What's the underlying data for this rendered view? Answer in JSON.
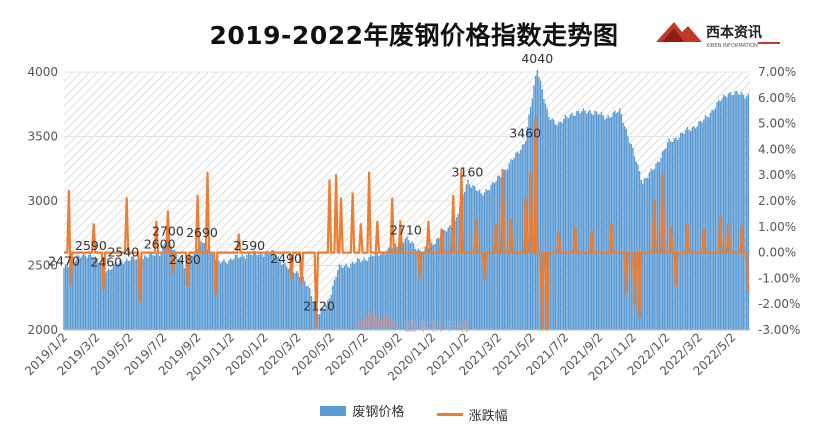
{
  "chart_data": {
    "type": "bar",
    "title": "2019-2022年废钢价格指数走势图",
    "series": [
      {
        "name": "废钢价格",
        "type": "bar",
        "color": "#5b9bd5"
      },
      {
        "name": "涨跌幅",
        "type": "line",
        "color": "#ed7d31"
      }
    ],
    "y_left": {
      "min": 2000,
      "max": 4000,
      "ticks": [
        "2000",
        "2500",
        "3000",
        "3500",
        "4000"
      ]
    },
    "y_right": {
      "min": -0.03,
      "max": 0.07,
      "ticks": [
        "-3.00%",
        "-2.00%",
        "-1.00%",
        "0.00%",
        "1.00%",
        "2.00%",
        "3.00%",
        "4.00%",
        "5.00%",
        "6.00%",
        "7.00%"
      ]
    },
    "x_ticks": [
      "2019/1/2",
      "2019/3/2",
      "2019/5/2",
      "2019/7/2",
      "2019/9/2",
      "2019/11/2",
      "2020/1/2",
      "2020/3/2",
      "2020/5/2",
      "2020/7/2",
      "2020/9/2",
      "2020/11/2",
      "2021/1/2",
      "2021/3/2",
      "2021/5/2",
      "2021/7/2",
      "2021/9/2",
      "2021/11/2",
      "2022/1/2",
      "2022/3/2",
      "2022/5/2"
    ],
    "price_anchors": [
      {
        "date": "2019/1/2",
        "value": 2470
      },
      {
        "date": "2019/1/25",
        "value": 2560
      },
      {
        "date": "2019/2/20",
        "value": 2590
      },
      {
        "date": "2019/3/20",
        "value": 2460
      },
      {
        "date": "2019/4/20",
        "value": 2540
      },
      {
        "date": "2019/5/25",
        "value": 2560
      },
      {
        "date": "2019/6/25",
        "value": 2600
      },
      {
        "date": "2019/7/10",
        "value": 2700
      },
      {
        "date": "2019/8/10",
        "value": 2480
      },
      {
        "date": "2019/9/10",
        "value": 2690
      },
      {
        "date": "2019/10/10",
        "value": 2520
      },
      {
        "date": "2019/11/10",
        "value": 2560
      },
      {
        "date": "2019/12/5",
        "value": 2590
      },
      {
        "date": "2020/1/20",
        "value": 2600
      },
      {
        "date": "2020/2/10",
        "value": 2490
      },
      {
        "date": "2020/3/5",
        "value": 2440
      },
      {
        "date": "2020/3/25",
        "value": 2300
      },
      {
        "date": "2020/4/10",
        "value": 2120
      },
      {
        "date": "2020/4/25",
        "value": 2200
      },
      {
        "date": "2020/5/15",
        "value": 2480
      },
      {
        "date": "2020/7/1",
        "value": 2550
      },
      {
        "date": "2020/8/15",
        "value": 2620
      },
      {
        "date": "2020/9/15",
        "value": 2710
      },
      {
        "date": "2020/10/15",
        "value": 2600
      },
      {
        "date": "2020/11/15",
        "value": 2720
      },
      {
        "date": "2020/12/15",
        "value": 2850
      },
      {
        "date": "2021/1/5",
        "value": 3160
      },
      {
        "date": "2021/1/30",
        "value": 3050
      },
      {
        "date": "2021/2/25",
        "value": 3150
      },
      {
        "date": "2021/3/25",
        "value": 3300
      },
      {
        "date": "2021/4/20",
        "value": 3460
      },
      {
        "date": "2021/5/12",
        "value": 4040
      },
      {
        "date": "2021/6/1",
        "value": 3650
      },
      {
        "date": "2021/6/20",
        "value": 3600
      },
      {
        "date": "2021/7/15",
        "value": 3680
      },
      {
        "date": "2021/8/15",
        "value": 3700
      },
      {
        "date": "2021/9/15",
        "value": 3650
      },
      {
        "date": "2021/10/10",
        "value": 3700
      },
      {
        "date": "2021/11/1",
        "value": 3400
      },
      {
        "date": "2021/11/20",
        "value": 3150
      },
      {
        "date": "2021/12/10",
        "value": 3250
      },
      {
        "date": "2022/1/5",
        "value": 3450
      },
      {
        "date": "2022/2/10",
        "value": 3550
      },
      {
        "date": "2022/3/10",
        "value": 3620
      },
      {
        "date": "2022/4/10",
        "value": 3780
      },
      {
        "date": "2022/4/25",
        "value": 3840
      },
      {
        "date": "2022/5/31",
        "value": 3820
      }
    ],
    "data_labels": [
      {
        "date": "2019/1/2",
        "value": 2470,
        "text": "2470"
      },
      {
        "date": "2019/2/20",
        "value": 2590,
        "text": "2590"
      },
      {
        "date": "2019/3/20",
        "value": 2460,
        "text": "2460"
      },
      {
        "date": "2019/4/20",
        "value": 2540,
        "text": "2540"
      },
      {
        "date": "2019/6/25",
        "value": 2600,
        "text": "2600"
      },
      {
        "date": "2019/7/10",
        "value": 2700,
        "text": "2700"
      },
      {
        "date": "2019/8/10",
        "value": 2480,
        "text": "2480"
      },
      {
        "date": "2019/9/10",
        "value": 2690,
        "text": "2690"
      },
      {
        "date": "2019/12/5",
        "value": 2590,
        "text": "2590"
      },
      {
        "date": "2020/2/10",
        "value": 2490,
        "text": "2490"
      },
      {
        "date": "2020/4/10",
        "value": 2120,
        "text": "2120"
      },
      {
        "date": "2020/9/15",
        "value": 2710,
        "text": "2710"
      },
      {
        "date": "2021/1/5",
        "value": 3160,
        "text": "3160"
      },
      {
        "date": "2021/4/20",
        "value": 3460,
        "text": "3460"
      },
      {
        "date": "2021/5/12",
        "value": 4040,
        "text": "4040"
      }
    ],
    "change_spikes": [
      {
        "date": "2019/1/10",
        "value": 0.024
      },
      {
        "date": "2019/1/15",
        "value": -0.012
      },
      {
        "date": "2019/2/25",
        "value": 0.011
      },
      {
        "date": "2019/3/15",
        "value": -0.014
      },
      {
        "date": "2019/4/25",
        "value": 0.021
      },
      {
        "date": "2019/5/20",
        "value": -0.019
      },
      {
        "date": "2019/6/20",
        "value": 0.012
      },
      {
        "date": "2019/7/10",
        "value": 0.016
      },
      {
        "date": "2019/7/20",
        "value": -0.008
      },
      {
        "date": "2019/8/15",
        "value": -0.013
      },
      {
        "date": "2019/9/1",
        "value": 0.022
      },
      {
        "date": "2019/9/20",
        "value": 0.031
      },
      {
        "date": "2019/10/5",
        "value": -0.016
      },
      {
        "date": "2019/11/15",
        "value": 0.007
      },
      {
        "date": "2020/2/20",
        "value": -0.01
      },
      {
        "date": "2020/3/10",
        "value": -0.012
      },
      {
        "date": "2020/4/5",
        "value": -0.029
      },
      {
        "date": "2020/4/28",
        "value": 0.028
      },
      {
        "date": "2020/5/10",
        "value": 0.03
      },
      {
        "date": "2020/5/20",
        "value": 0.021
      },
      {
        "date": "2020/6/10",
        "value": 0.023
      },
      {
        "date": "2020/6/25",
        "value": 0.011
      },
      {
        "date": "2020/7/10",
        "value": 0.031
      },
      {
        "date": "2020/7/25",
        "value": 0.012
      },
      {
        "date": "2020/8/20",
        "value": 0.021
      },
      {
        "date": "2020/9/5",
        "value": 0.012
      },
      {
        "date": "2020/10/10",
        "value": -0.01
      },
      {
        "date": "2020/10/25",
        "value": 0.012
      },
      {
        "date": "2020/11/20",
        "value": 0.009
      },
      {
        "date": "2020/12/10",
        "value": 0.022
      },
      {
        "date": "2020/12/25",
        "value": 0.032
      },
      {
        "date": "2021/1/20",
        "value": 0.013
      },
      {
        "date": "2021/2/5",
        "value": -0.01
      },
      {
        "date": "2021/2/25",
        "value": 0.011
      },
      {
        "date": "2021/3/10",
        "value": 0.032
      },
      {
        "date": "2021/3/25",
        "value": 0.013
      },
      {
        "date": "2021/4/20",
        "value": 0.021
      },
      {
        "date": "2021/5/1",
        "value": 0.031
      },
      {
        "date": "2021/5/10",
        "value": 0.052
      },
      {
        "date": "2021/5/20",
        "value": -0.03
      },
      {
        "date": "2021/5/30",
        "value": -0.03
      },
      {
        "date": "2021/6/20",
        "value": 0.008
      },
      {
        "date": "2021/7/20",
        "value": 0.01
      },
      {
        "date": "2021/8/20",
        "value": 0.008
      },
      {
        "date": "2021/9/25",
        "value": 0.011
      },
      {
        "date": "2021/10/20",
        "value": -0.016
      },
      {
        "date": "2021/11/5",
        "value": -0.02
      },
      {
        "date": "2021/11/15",
        "value": -0.025
      },
      {
        "date": "2021/12/10",
        "value": 0.02
      },
      {
        "date": "2021/12/25",
        "value": 0.03
      },
      {
        "date": "2022/1/10",
        "value": 0.01
      },
      {
        "date": "2022/1/20",
        "value": -0.013
      },
      {
        "date": "2022/2/10",
        "value": 0.011
      },
      {
        "date": "2022/3/10",
        "value": 0.009
      },
      {
        "date": "2022/4/10",
        "value": 0.014
      },
      {
        "date": "2022/4/25",
        "value": 0.011
      },
      {
        "date": "2022/5/20",
        "value": 0.01
      },
      {
        "date": "2022/5/31",
        "value": -0.016
      }
    ]
  },
  "legend": {
    "bar_label": "废钢价格",
    "line_label": "涨跌幅"
  },
  "watermark": {
    "text": "西本新干线"
  },
  "logo": {
    "text": "西本资讯",
    "sub": "XIBEN INFORMATION"
  }
}
